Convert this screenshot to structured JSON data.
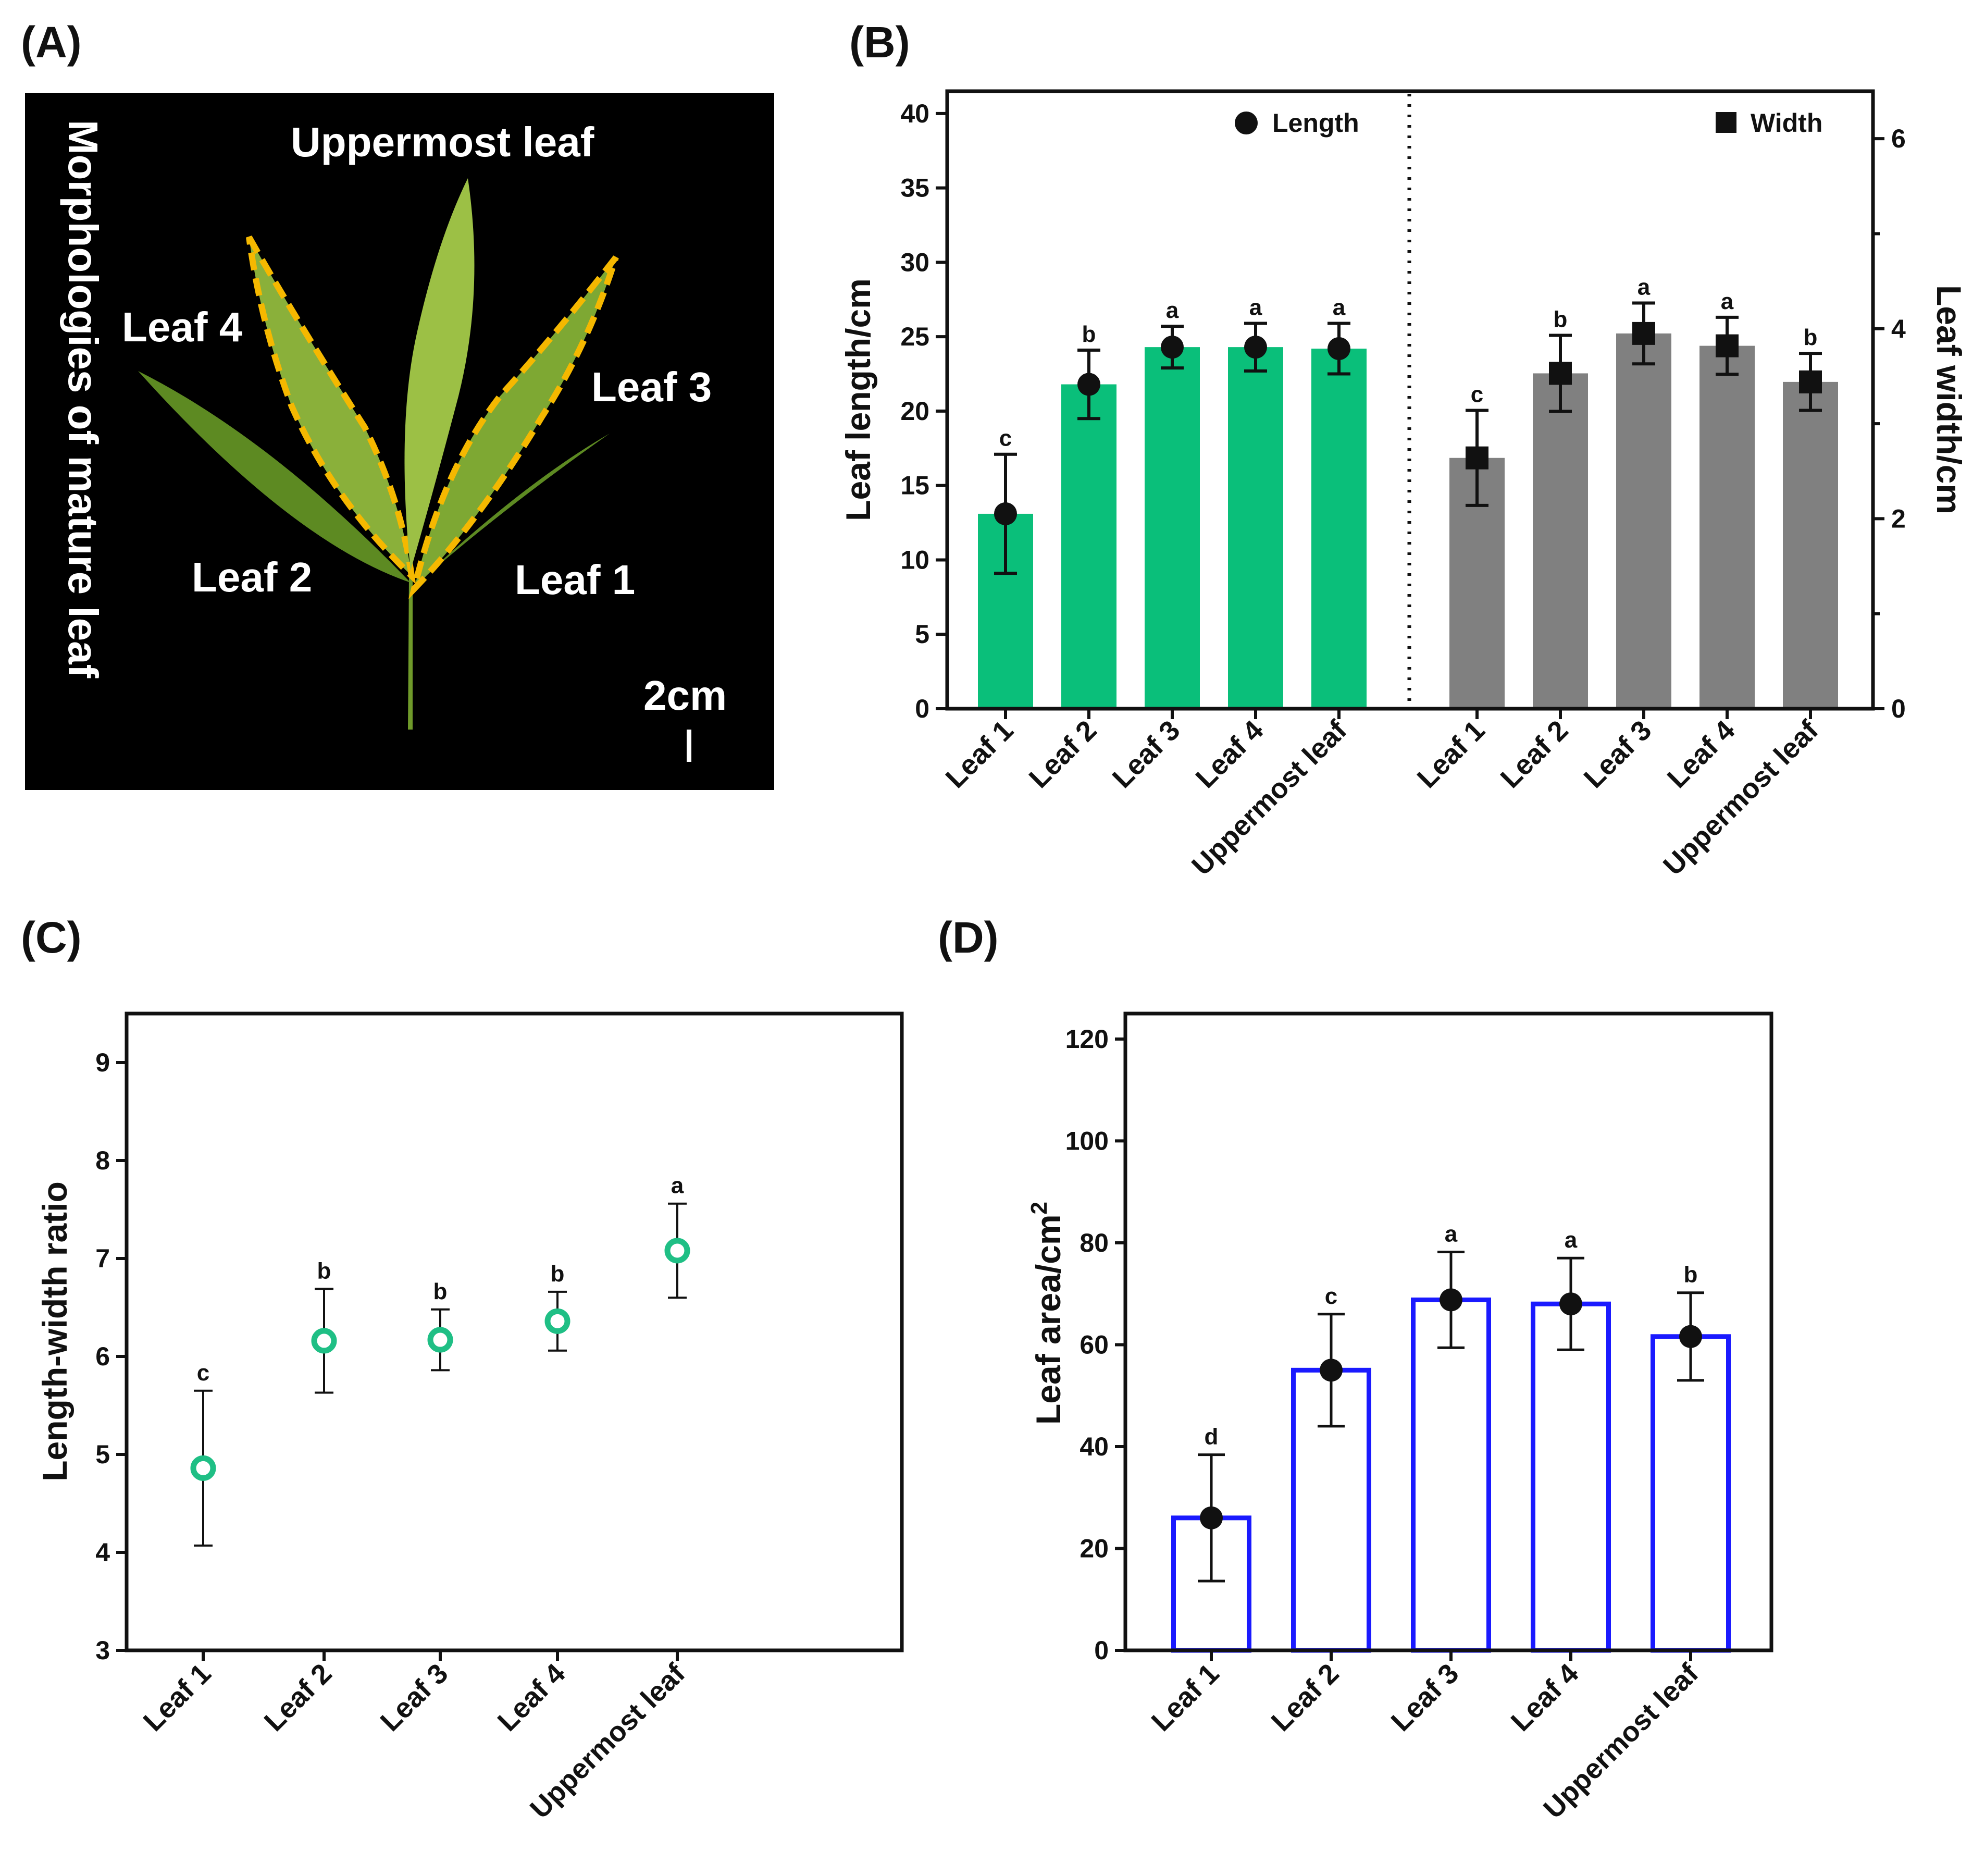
{
  "chart_data": [
    {
      "panel": "(A)",
      "type": "other",
      "description_labels": {
        "side_title": "Morphologies of mature leaf",
        "top_label": "Uppermost leaf",
        "leaf_labels": [
          "Leaf 4",
          "Leaf 3",
          "Leaf 2",
          "Leaf 1"
        ],
        "scale_label": "2cm"
      },
      "colors": {
        "background": "#000000",
        "outline": "#f5b800",
        "leaf": "#6f9a2a"
      }
    },
    {
      "panel": "(B)",
      "type": "bar",
      "categories": [
        "Leaf 1",
        "Leaf 2",
        "Leaf 3",
        "Leaf 4",
        "Uppermost leaf"
      ],
      "series": [
        {
          "name": "Length",
          "axis": "left",
          "marker": "circle",
          "color": "#0abf7a",
          "values": [
            13.1,
            21.8,
            24.3,
            24.3,
            24.2
          ],
          "errors": [
            4.0,
            2.3,
            1.4,
            1.6,
            1.7
          ],
          "letters": [
            "c",
            "b",
            "a",
            "a",
            "a"
          ]
        },
        {
          "name": "Width",
          "axis": "right",
          "marker": "square",
          "color": "#808080",
          "values": [
            2.64,
            3.53,
            3.95,
            3.82,
            3.44
          ],
          "errors": [
            0.5,
            0.4,
            0.32,
            0.3,
            0.3
          ],
          "letters": [
            "c",
            "b",
            "a",
            "a",
            "b"
          ]
        }
      ],
      "ylabel": "Leaf length/cm",
      "ylabel_right": "Leaf width/cm",
      "ylim": [
        0,
        41.5
      ],
      "yticks": [
        0,
        5,
        10,
        15,
        20,
        25,
        30,
        35,
        40
      ],
      "ylim_right": [
        0,
        6.5
      ],
      "yticks_right": [
        0,
        2,
        4,
        6
      ],
      "legend": [
        "Length",
        "Width"
      ]
    },
    {
      "panel": "(C)",
      "type": "scatter",
      "categories": [
        "Leaf 1",
        "Leaf 2",
        "Leaf 3",
        "Leaf 4",
        "Uppermost leaf"
      ],
      "values": [
        4.86,
        6.16,
        6.17,
        6.36,
        7.08
      ],
      "errors": [
        0.79,
        0.53,
        0.31,
        0.3,
        0.48
      ],
      "letters": [
        "c",
        "b",
        "b",
        "b",
        "a"
      ],
      "ylabel": "Length-width ratio",
      "ylim": [
        3,
        9.5
      ],
      "yticks": [
        3,
        4,
        5,
        6,
        7,
        8,
        9
      ],
      "color": "#1fbf85"
    },
    {
      "panel": "(D)",
      "type": "bar",
      "categories": [
        "Leaf 1",
        "Leaf 2",
        "Leaf 3",
        "Leaf 4",
        "Uppermost leaf"
      ],
      "values": [
        26.0,
        55.0,
        68.8,
        68.0,
        61.6
      ],
      "errors": [
        12.4,
        11.0,
        9.4,
        9.0,
        8.6
      ],
      "letters": [
        "d",
        "c",
        "a",
        "a",
        "b"
      ],
      "ylabel": "Leaf area/cm",
      "ylabel_sup": "2",
      "ylim": [
        0,
        125
      ],
      "yticks": [
        0,
        20,
        40,
        60,
        80,
        100,
        120
      ],
      "color": "#1a1aff"
    }
  ]
}
